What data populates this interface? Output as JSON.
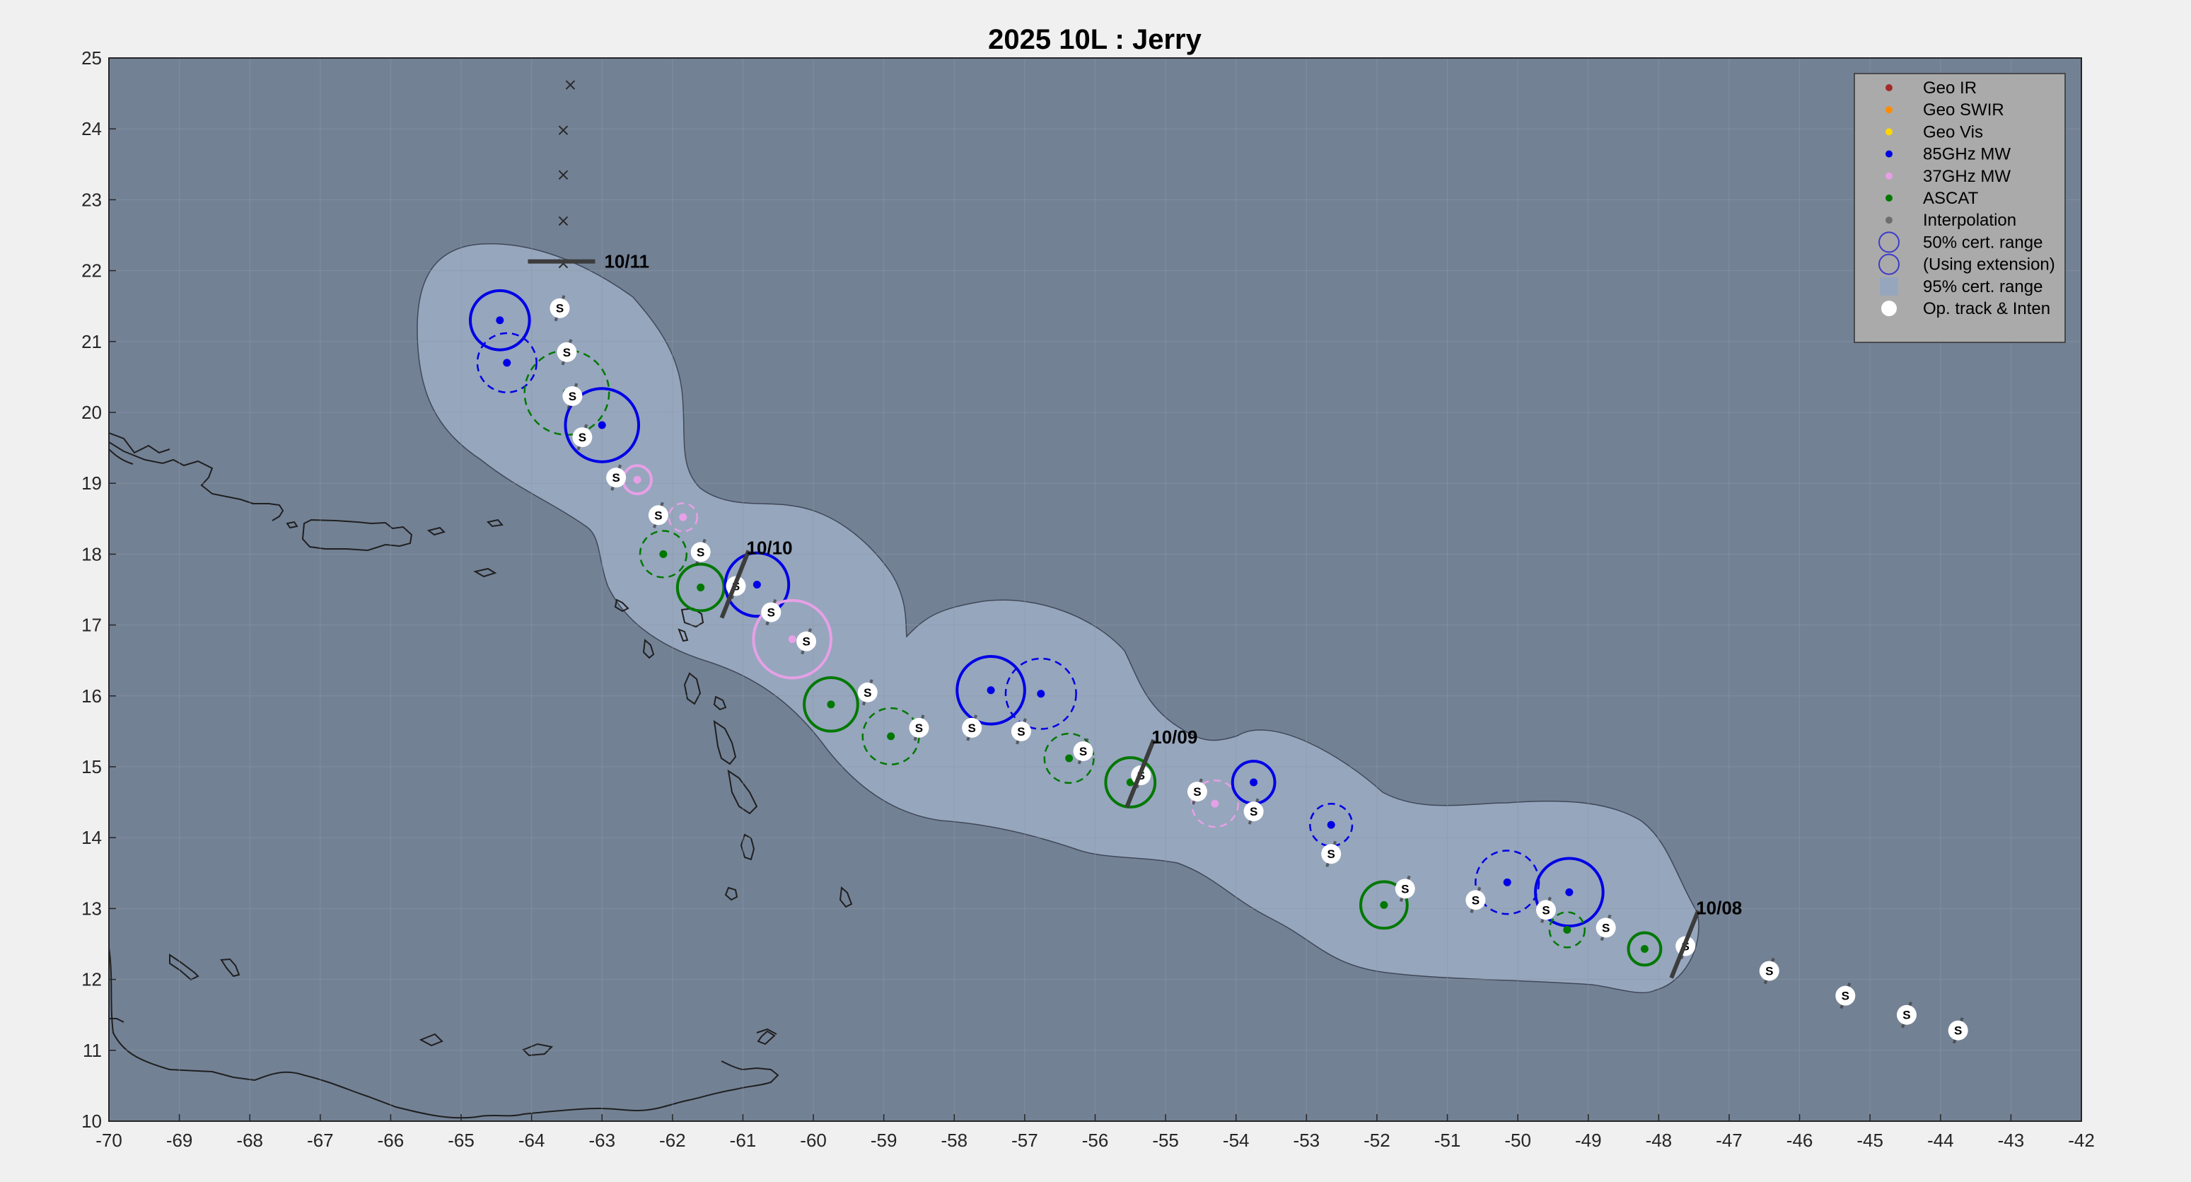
{
  "chart_data": {
    "type": "scatter",
    "title": "2025  10L :  Jerry",
    "xlim": [
      -70,
      -42
    ],
    "ylim": [
      10,
      25
    ],
    "xticks": [
      -70,
      -69,
      -68,
      -67,
      -66,
      -65,
      -64,
      -63,
      -62,
      -61,
      -60,
      -59,
      -58,
      -57,
      -56,
      -55,
      -54,
      -53,
      -52,
      -51,
      -50,
      -49,
      -48,
      -47,
      -46,
      -45,
      -44,
      -43,
      -42
    ],
    "yticks": [
      10,
      11,
      12,
      13,
      14,
      15,
      16,
      17,
      18,
      19,
      20,
      21,
      22,
      23,
      24,
      25
    ],
    "grid": true,
    "legend_position": "top-right",
    "colors": {
      "figure_bg": "#f0f0f0",
      "axes_bg": "#738195",
      "cone": "#96a6bd",
      "land_outline": "#1f1f1f",
      "geo_ir": "#a52a2a",
      "geo_swir": "#ff8c00",
      "geo_vis": "#ffd700",
      "mw85": "#0000e6",
      "mw37": "#e6a0e6",
      "ascat": "#007800",
      "interp": "#6e6e6e",
      "op_track": "#ffffff",
      "date_bar": "#3c3c3c"
    },
    "legend": [
      {
        "label": "Geo IR",
        "kind": "dot",
        "color": "#a52a2a"
      },
      {
        "label": "Geo SWIR",
        "kind": "dot",
        "color": "#ff8c00"
      },
      {
        "label": "Geo Vis",
        "kind": "dot",
        "color": "#ffd700"
      },
      {
        "label": "85GHz MW",
        "kind": "dot",
        "color": "#0000e6"
      },
      {
        "label": "37GHz MW",
        "kind": "dot",
        "color": "#e6a0e6"
      },
      {
        "label": "ASCAT",
        "kind": "dot",
        "color": "#007800"
      },
      {
        "label": "Interpolation",
        "kind": "dot",
        "color": "#6e6e6e"
      },
      {
        "label": "50% cert. range",
        "kind": "ring",
        "color": "#3c3cc8"
      },
      {
        "label": "(Using extension)",
        "kind": "ring",
        "color": "#3c3cc8"
      },
      {
        "label": "95% cert. range",
        "kind": "patch",
        "color": "#96a6bd"
      },
      {
        "label": "Op. track & Inten",
        "kind": "bigdot",
        "color": "#ffffff"
      }
    ],
    "fixes": [
      {
        "type": "mw85",
        "lon": -64.45,
        "lat": 21.3,
        "r": 0.42,
        "dashed": false
      },
      {
        "type": "mw85",
        "lon": -64.35,
        "lat": 20.7,
        "r": 0.42,
        "dashed": true
      },
      {
        "type": "ascat",
        "lon": -63.5,
        "lat": 20.28,
        "r": 0.6,
        "dashed": true
      },
      {
        "type": "mw85",
        "lon": -63.0,
        "lat": 19.82,
        "r": 0.52,
        "dashed": false
      },
      {
        "type": "mw37",
        "lon": -62.5,
        "lat": 19.05,
        "r": 0.2,
        "dashed": false
      },
      {
        "type": "mw37",
        "lon": -61.85,
        "lat": 18.52,
        "r": 0.2,
        "dashed": true
      },
      {
        "type": "ascat",
        "lon": -62.13,
        "lat": 18.0,
        "r": 0.33,
        "dashed": true
      },
      {
        "type": "ascat",
        "lon": -61.6,
        "lat": 17.53,
        "r": 0.33,
        "dashed": false
      },
      {
        "type": "mw85",
        "lon": -60.8,
        "lat": 17.57,
        "r": 0.45,
        "dashed": false
      },
      {
        "type": "mw37",
        "lon": -60.3,
        "lat": 16.8,
        "r": 0.55,
        "dashed": false
      },
      {
        "type": "ascat",
        "lon": -59.75,
        "lat": 15.88,
        "r": 0.38,
        "dashed": false
      },
      {
        "type": "ascat",
        "lon": -58.9,
        "lat": 15.43,
        "r": 0.4,
        "dashed": true
      },
      {
        "type": "mw85",
        "lon": -57.48,
        "lat": 16.08,
        "r": 0.48,
        "dashed": false
      },
      {
        "type": "mw85",
        "lon": -56.77,
        "lat": 16.03,
        "r": 0.5,
        "dashed": true
      },
      {
        "type": "ascat",
        "lon": -56.37,
        "lat": 15.12,
        "r": 0.35,
        "dashed": true
      },
      {
        "type": "ascat",
        "lon": -55.5,
        "lat": 14.78,
        "r": 0.35,
        "dashed": false
      },
      {
        "type": "mw37",
        "lon": -54.3,
        "lat": 14.48,
        "r": 0.33,
        "dashed": true
      },
      {
        "type": "mw85",
        "lon": -53.75,
        "lat": 14.78,
        "r": 0.3,
        "dashed": false
      },
      {
        "type": "mw85",
        "lon": -52.65,
        "lat": 14.18,
        "r": 0.3,
        "dashed": true
      },
      {
        "type": "ascat",
        "lon": -51.9,
        "lat": 13.05,
        "r": 0.33,
        "dashed": false
      },
      {
        "type": "mw85",
        "lon": -50.15,
        "lat": 13.37,
        "r": 0.45,
        "dashed": true
      },
      {
        "type": "mw85",
        "lon": -49.27,
        "lat": 13.23,
        "r": 0.48,
        "dashed": false
      },
      {
        "type": "ascat",
        "lon": -49.3,
        "lat": 12.7,
        "r": 0.25,
        "dashed": true
      },
      {
        "type": "ascat",
        "lon": -48.2,
        "lat": 12.43,
        "r": 0.23,
        "dashed": false
      }
    ],
    "op_track": [
      [
        -43.75,
        11.28
      ],
      [
        -44.48,
        11.5
      ],
      [
        -45.35,
        11.77
      ],
      [
        -46.43,
        12.12
      ],
      [
        -47.62,
        12.47
      ],
      [
        -48.75,
        12.73
      ],
      [
        -49.6,
        12.98
      ],
      [
        -50.6,
        13.12
      ],
      [
        -51.6,
        13.28
      ],
      [
        -52.65,
        13.77
      ],
      [
        -53.75,
        14.37
      ],
      [
        -54.55,
        14.65
      ],
      [
        -55.35,
        14.88
      ],
      [
        -56.17,
        15.22
      ],
      [
        -57.05,
        15.5
      ],
      [
        -57.75,
        15.55
      ],
      [
        -58.5,
        15.55
      ],
      [
        -59.23,
        16.05
      ],
      [
        -60.1,
        16.77
      ],
      [
        -60.6,
        17.18
      ],
      [
        -61.1,
        17.55
      ],
      [
        -61.6,
        18.03
      ],
      [
        -62.2,
        18.55
      ],
      [
        -62.8,
        19.08
      ],
      [
        -63.28,
        19.65
      ],
      [
        -63.42,
        20.23
      ],
      [
        -63.5,
        20.85
      ],
      [
        -63.6,
        21.47
      ]
    ],
    "interp_points": [
      [
        -63.55,
        22.1
      ],
      [
        -63.55,
        22.7
      ],
      [
        -63.55,
        23.35
      ],
      [
        -63.55,
        23.98
      ],
      [
        -63.45,
        24.62
      ]
    ],
    "date_labels": [
      {
        "text": "10/08",
        "lon": -47.62,
        "lat": 12.47
      },
      {
        "text": "10/09",
        "lon": -55.35,
        "lat": 14.88
      },
      {
        "text": "10/10",
        "lon": -61.1,
        "lat": 17.55
      },
      {
        "text": "10/11",
        "lon": -63.55,
        "lat": 22.13
      }
    ],
    "ss_marker": "S"
  }
}
